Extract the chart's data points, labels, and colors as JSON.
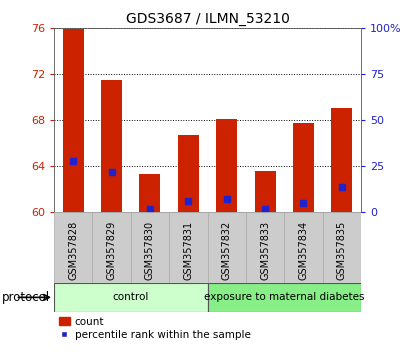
{
  "title": "GDS3687 / ILMN_53210",
  "samples": [
    "GSM357828",
    "GSM357829",
    "GSM357830",
    "GSM357831",
    "GSM357832",
    "GSM357833",
    "GSM357834",
    "GSM357835"
  ],
  "count_values": [
    75.9,
    71.5,
    63.3,
    66.7,
    68.1,
    63.6,
    67.8,
    69.1
  ],
  "percentile_values": [
    64.5,
    63.5,
    60.3,
    61.0,
    61.2,
    60.3,
    60.8,
    62.2
  ],
  "bar_bottom": 60.0,
  "ylim_left": [
    60,
    76
  ],
  "ylim_right": [
    0,
    100
  ],
  "yticks_left": [
    60,
    64,
    68,
    72,
    76
  ],
  "yticks_right": [
    0,
    25,
    50,
    75,
    100
  ],
  "ytick_labels_right": [
    "0",
    "25",
    "50",
    "75",
    "100%"
  ],
  "count_color": "#cc2200",
  "percentile_color": "#2222cc",
  "bar_width": 0.55,
  "groups": [
    {
      "label": "control",
      "indices": [
        0,
        1,
        2,
        3
      ],
      "color": "#ccffcc"
    },
    {
      "label": "exposure to maternal diabetes",
      "indices": [
        4,
        5,
        6,
        7
      ],
      "color": "#88ee88"
    }
  ],
  "protocol_label": "protocol",
  "tick_color_left": "#cc2200",
  "tick_color_right": "#2222cc",
  "legend_count_label": "count",
  "legend_percentile_label": "percentile rank within the sample",
  "xtick_bg_color": "#cccccc",
  "xtick_border_color": "#aaaaaa",
  "spine_color": "#555555"
}
